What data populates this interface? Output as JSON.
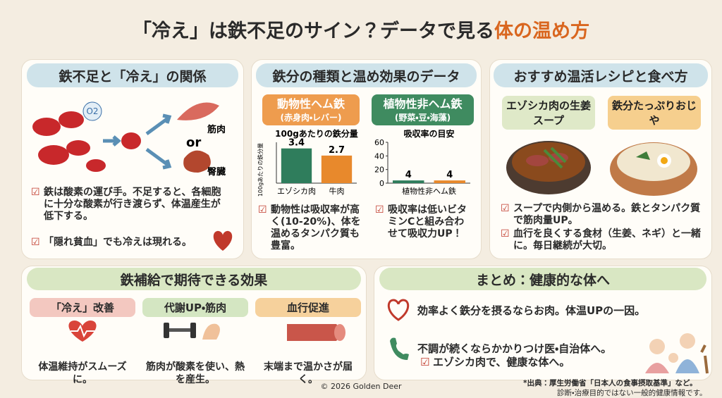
{
  "header": {
    "title": "「冷え」は鉄不足のサイン？データで見る",
    "title_accent": "体の温め方"
  },
  "relation": {
    "heading": "鉄不足と「冷え」の関係",
    "labels": {
      "oxygen": "O2",
      "muscle": "筋肉",
      "or": "or",
      "kidney": "臀臓"
    },
    "bullets": [
      "鉄は酸素の運び手。不足すると、各細胞に十分な酸素が行き渡らず、体温産生が低下する。",
      "「隠れ貧血」でも冷えは現れる。"
    ]
  },
  "iron_types": {
    "heading": "鉄分の種類と温め効果のデータ",
    "heme": {
      "name": "動物性ヘム鉄",
      "sources": "(赤身肉・レバー)",
      "bullet": "動物性は吸収率が高く(10-20%)、体を温めるタンパク質も豊富。"
    },
    "nonheme": {
      "name": "植物性非ヘム鉄",
      "sources": "(野菜・豆・海藻)",
      "bullet": "吸収率は低いビタミンCと組み合わせて吸収力UP！"
    }
  },
  "chart_data": [
    {
      "type": "bar",
      "title": "100gあたりの鉄分量",
      "ylabel": "100gあたりの鉄分量",
      "categories": [
        "エゾシカ肉",
        "牛肉"
      ],
      "values": [
        3.4,
        2.7
      ],
      "colors": [
        "#2f7d5c",
        "#e8892c"
      ],
      "ylim": [
        0,
        4
      ]
    },
    {
      "type": "bar",
      "title": "吸収率の目安",
      "xlabel": "植物性非ヘム鉄",
      "categories": [
        null,
        null
      ],
      "values": [
        4,
        4
      ],
      "colors": [
        "#2f7d5c",
        "#e8892c"
      ],
      "ylim": [
        0,
        60
      ],
      "yticks": [
        0,
        20,
        40,
        60
      ]
    }
  ],
  "recipes": {
    "heading": "おすすめ温活レシピと食べ方",
    "items": [
      "エゾシカ肉の生姜スープ",
      "鉄分たっぷりおじや"
    ],
    "bullets": [
      "スープで内側から温める。鉄とタンパク質で筋肉量UP。",
      "血行を良くする食材（生姜、ネギ）と一緒に。毎日継続が大切。"
    ]
  },
  "effects": {
    "heading": "鉄補給で期待できる効果",
    "cards": [
      {
        "title": "「冷え」改善",
        "text": "体温維持がスムーズに。"
      },
      {
        "title": "代謝UP・筋肉",
        "text": "筋肉が酸素を使い、熱を産生。"
      },
      {
        "title": "血行促進",
        "text": "末端まで温かさが届く。"
      }
    ]
  },
  "summary": {
    "heading": "まとめ：健康的な体へ",
    "items": [
      "効率よく鉄分を摂るならお肉。体温UPの一因。",
      "不調が続くならかかりつけ医・自治体へ。",
      "エゾシカ肉で、健康な体へ。"
    ]
  },
  "footer": {
    "copyright": "© 2026 Golden Deer",
    "source": "*出典：厚生労働省「日本人の食事摂取基準」など。",
    "disclaimer": "診断・治療目的ではない一般的健康情報です。"
  }
}
